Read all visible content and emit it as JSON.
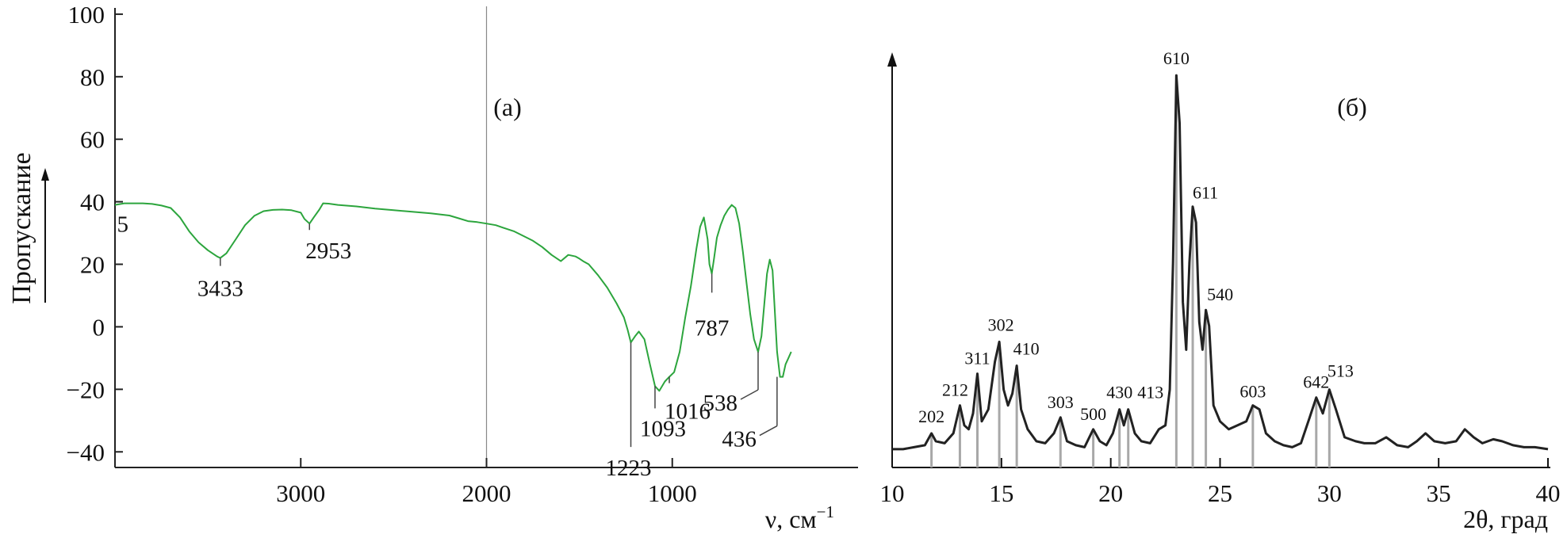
{
  "chart_data": [
    {
      "panel": "a",
      "type": "line",
      "panel_label": "(а)",
      "xlabel": "ν, см",
      "xlabel_sup": "−1",
      "ylabel": "Пропускание",
      "xlim": [
        4000,
        0
      ],
      "ylim": [
        -45,
        102
      ],
      "x_ticks": [
        3000,
        2000,
        1000
      ],
      "x_tick_labels": [
        "3000",
        "2000",
        "1000"
      ],
      "y_ticks": [
        -40,
        -20,
        0,
        20,
        40,
        60,
        80,
        100
      ],
      "y_tick_labels": [
        "−40",
        "−20",
        "0",
        "20",
        "40",
        "60",
        "80",
        "100"
      ],
      "divider_at": 2000,
      "line_color": "#2ca53d",
      "series": [
        {
          "x": [
            4000,
            3950,
            3900,
            3850,
            3800,
            3750,
            3700,
            3650,
            3600,
            3550,
            3500,
            3450,
            3433,
            3400,
            3350,
            3300,
            3250,
            3200,
            3150,
            3100,
            3050,
            3000,
            2980,
            2953,
            2930,
            2900,
            2880,
            2850,
            2800,
            2700,
            2600,
            2500,
            2400,
            2300,
            2200,
            2150,
            2100,
            2050,
            2000,
            1950,
            1900,
            1850,
            1800,
            1750,
            1700,
            1650,
            1600,
            1560,
            1520,
            1500,
            1480,
            1450,
            1400,
            1350,
            1300,
            1260,
            1240,
            1223,
            1200,
            1180,
            1150,
            1120,
            1093,
            1070,
            1040,
            1016,
            990,
            960,
            930,
            900,
            870,
            850,
            830,
            810,
            800,
            787,
            775,
            760,
            740,
            720,
            700,
            680,
            660,
            640,
            620,
            600,
            580,
            560,
            538,
            520,
            505,
            490,
            475,
            460,
            436,
            420,
            405,
            390,
            375,
            360
          ],
          "y": [
            39,
            39.5,
            39.5,
            39.5,
            39.3,
            38.8,
            38,
            35,
            30.5,
            27,
            24.5,
            22.5,
            22,
            23.5,
            28,
            32.5,
            35.5,
            37,
            37.4,
            37.5,
            37.3,
            36.5,
            34.5,
            33,
            35,
            37.5,
            39.5,
            39.4,
            39,
            38.5,
            37.8,
            37.3,
            36.8,
            36.3,
            35.6,
            34.7,
            33.8,
            33.5,
            33,
            32.5,
            31.5,
            30.5,
            29,
            27.5,
            25.5,
            23,
            21,
            23,
            22.5,
            21.8,
            21,
            20,
            16.5,
            12.5,
            7.5,
            3,
            -1,
            -5,
            -3,
            -1.5,
            -4,
            -12,
            -19,
            -20.5,
            -17.5,
            -16,
            -14.5,
            -8,
            3,
            13,
            25,
            32,
            35,
            28,
            20,
            17,
            22,
            28.5,
            32.5,
            35.5,
            37.5,
            39,
            38,
            33,
            24,
            14,
            4,
            -4,
            -8,
            -3,
            7,
            17,
            21.5,
            18,
            -8,
            -16,
            -16,
            -12,
            -10,
            -8
          ]
        }
      ],
      "annotations": [
        {
          "label": "5",
          "x": 3955,
          "y": 39
        },
        {
          "label": "3433",
          "x": 3433,
          "y": 22
        },
        {
          "label": "2953",
          "x": 2953,
          "y": 33
        },
        {
          "label": "1223",
          "x": 1223,
          "y": -5
        },
        {
          "label": "1093",
          "x": 1093,
          "y": -19
        },
        {
          "label": "1016",
          "x": 1016,
          "y": -16
        },
        {
          "label": "787",
          "x": 787,
          "y": 17
        },
        {
          "label": "538",
          "x": 538,
          "y": -8
        },
        {
          "label": "436",
          "x": 436,
          "y": -16
        }
      ]
    },
    {
      "panel": "б",
      "type": "line",
      "panel_label": "(б)",
      "xlabel": "2θ, град",
      "xlim": [
        10,
        40
      ],
      "ylim": [
        0,
        100
      ],
      "x_ticks": [
        10,
        15,
        20,
        25,
        30,
        35,
        40
      ],
      "x_tick_labels": [
        "10",
        "15",
        "20",
        "25",
        "30",
        "35",
        "40"
      ],
      "line_color": "#222222",
      "bar_color": "#a8a8a8",
      "series": [
        {
          "x": [
            10,
            10.5,
            11,
            11.5,
            11.8,
            12,
            12.4,
            12.8,
            13.1,
            13.3,
            13.5,
            13.7,
            13.9,
            14.1,
            14.4,
            14.7,
            14.9,
            15.1,
            15.3,
            15.5,
            15.7,
            15.9,
            16.2,
            16.6,
            17,
            17.4,
            17.7,
            18,
            18.4,
            18.8,
            19.2,
            19.5,
            19.8,
            20.1,
            20.4,
            20.6,
            20.8,
            21.1,
            21.4,
            21.8,
            22.2,
            22.5,
            22.7,
            22.85,
            23,
            23.15,
            23.3,
            23.45,
            23.6,
            23.75,
            23.9,
            24.05,
            24.2,
            24.35,
            24.5,
            24.7,
            25,
            25.4,
            25.8,
            26.2,
            26.5,
            26.8,
            27.1,
            27.5,
            27.9,
            28.3,
            28.7,
            29.1,
            29.4,
            29.7,
            30,
            30.3,
            30.7,
            31.2,
            31.6,
            32.1,
            32.6,
            33.1,
            33.6,
            34,
            34.4,
            34.8,
            35.3,
            35.8,
            36.2,
            36.6,
            37,
            37.5,
            37.9,
            38.4,
            38.9,
            39.4,
            40
          ],
          "y": [
            3,
            3,
            3.5,
            4,
            7,
            5,
            4.5,
            7,
            14,
            9,
            8,
            12,
            22,
            10,
            13,
            25,
            30,
            18,
            14,
            17,
            24,
            13,
            8,
            5,
            4.5,
            7,
            11,
            5,
            4,
            3.5,
            8,
            5,
            4,
            7,
            13,
            9,
            13,
            7,
            5,
            4.5,
            8,
            9,
            18,
            50,
            97,
            85,
            40,
            28,
            50,
            64,
            60,
            35,
            28,
            38,
            34,
            14,
            10,
            8,
            9,
            10,
            14,
            13,
            7,
            5,
            4,
            3.5,
            4.5,
            11,
            16,
            12,
            18,
            13,
            6,
            5,
            4.5,
            4.5,
            6,
            4,
            3.5,
            5,
            7,
            5,
            4.5,
            5,
            8,
            6,
            4.5,
            5.5,
            5,
            4,
            3.5,
            3.5,
            3
          ]
        }
      ],
      "reflections": [
        {
          "label": "202",
          "x": 11.8,
          "y": 7
        },
        {
          "label": "212",
          "x": 13.1,
          "y": 14
        },
        {
          "label": "311",
          "x": 13.9,
          "y": 22
        },
        {
          "label": "302",
          "x": 14.9,
          "y": 30
        },
        {
          "label": "410",
          "x": 15.7,
          "y": 24
        },
        {
          "label": "303",
          "x": 17.7,
          "y": 11
        },
        {
          "label": "500",
          "x": 19.2,
          "y": 8
        },
        {
          "label": "430",
          "x": 20.4,
          "y": 13
        },
        {
          "label": "413",
          "x": 20.8,
          "y": 13
        },
        {
          "label": "610",
          "x": 23.0,
          "y": 97
        },
        {
          "label": "611",
          "x": 23.75,
          "y": 64
        },
        {
          "label": "540",
          "x": 24.35,
          "y": 38
        },
        {
          "label": "603",
          "x": 26.5,
          "y": 14
        },
        {
          "label": "642",
          "x": 29.4,
          "y": 16
        },
        {
          "label": "513",
          "x": 30.0,
          "y": 18
        }
      ]
    }
  ]
}
